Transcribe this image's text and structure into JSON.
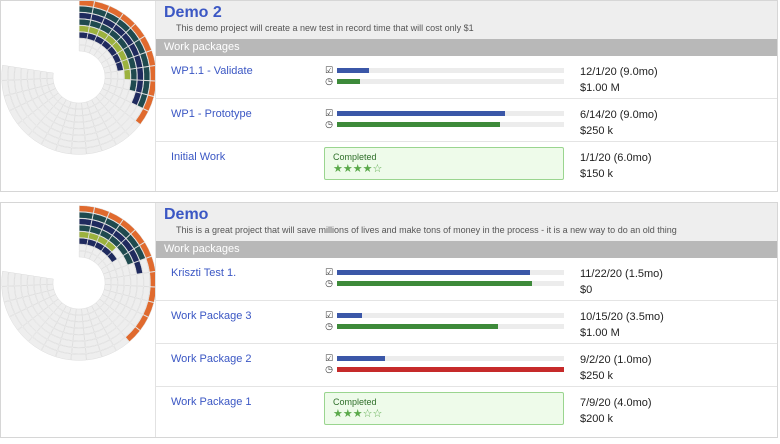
{
  "projects": [
    {
      "title": "Demo 2",
      "description": "This demo project will create a new test in record time that will cost only $1",
      "section_label": "Work packages",
      "work_packages": [
        {
          "name": "WP1.1 - Validate",
          "date": "12/1/20 (9.0mo)",
          "cost": "$1.00 M",
          "task_progress": 0.14,
          "time_progress": 0.1,
          "time_color": "#3d8a3a"
        },
        {
          "name": "WP1 - Prototype",
          "date": "6/14/20 (9.0mo)",
          "cost": "$250 k",
          "task_progress": 0.74,
          "time_progress": 0.72,
          "time_color": "#3d8a3a"
        },
        {
          "name": "Initial Work",
          "date": "1/1/20 (6.0mo)",
          "cost": "$150 k",
          "completed": true,
          "completed_label": "Completed",
          "stars": "★★★★☆",
          "rating": 4
        }
      ]
    },
    {
      "title": "Demo",
      "description": "This is a great project that will save millions of lives and make tons of money in the process - it is a new way to do an old thing",
      "section_label": "Work packages",
      "work_packages": [
        {
          "name": "Kriszti Test 1.",
          "date": "11/22/20 (1.5mo)",
          "cost": "$0",
          "task_progress": 0.85,
          "time_progress": 0.86,
          "time_color": "#3d8a3a"
        },
        {
          "name": "Work Package 3",
          "date": "10/15/20 (3.5mo)",
          "cost": "$1.00 M",
          "task_progress": 0.11,
          "time_progress": 0.71,
          "time_color": "#3d8a3a"
        },
        {
          "name": "Work Package 2",
          "date": "9/2/20 (1.0mo)",
          "cost": "$250 k",
          "task_progress": 0.21,
          "time_progress": 1.0,
          "time_color": "#c62a2a"
        },
        {
          "name": "Work Package 1",
          "date": "7/9/20 (4.0mo)",
          "cost": "$200 k",
          "completed": true,
          "completed_label": "Completed",
          "stars": "★★★☆☆",
          "rating": 3
        }
      ]
    }
  ],
  "icons": {
    "task": "checkbox-icon",
    "time": "clock-icon"
  },
  "colors": {
    "title": "#3b57c4",
    "task_bar": "#3b57a8",
    "time_ok": "#3d8a3a",
    "time_over": "#c62a2a",
    "section_header": "#b8b8b8",
    "completed_border": "#9ad58f",
    "wheel_orange": "#e06a2e",
    "wheel_navy": "#1f2a5e",
    "wheel_teal": "#1f4a4f",
    "wheel_olive": "#9cb23e"
  }
}
